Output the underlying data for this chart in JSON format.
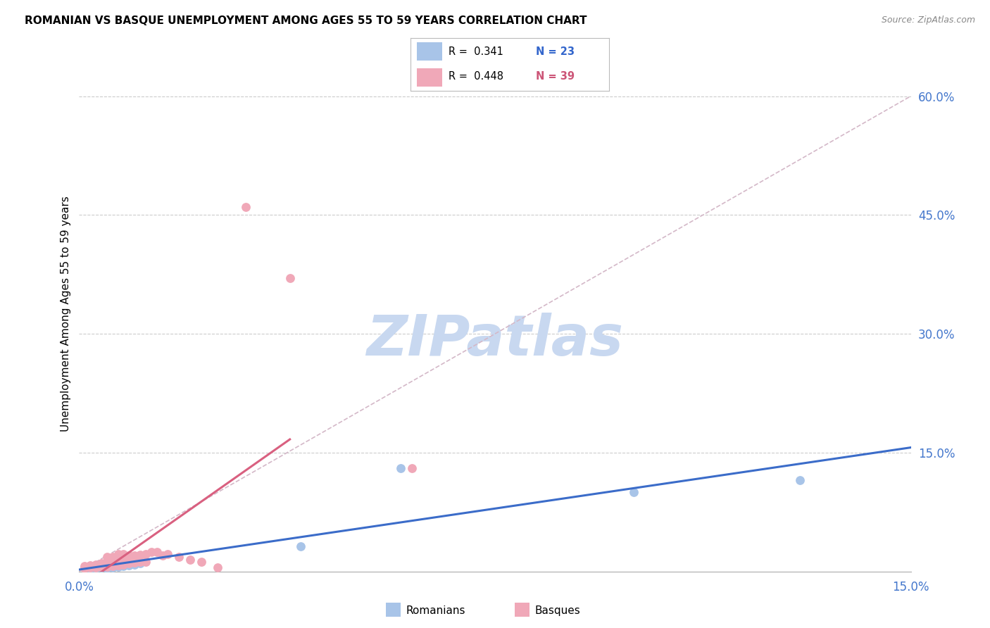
{
  "title": "ROMANIAN VS BASQUE UNEMPLOYMENT AMONG AGES 55 TO 59 YEARS CORRELATION CHART",
  "source": "Source: ZipAtlas.com",
  "ylabel": "Unemployment Among Ages 55 to 59 years",
  "xlim": [
    0.0,
    0.15
  ],
  "ylim": [
    0.0,
    0.65
  ],
  "legend_r_blue": "R =  0.341",
  "legend_n_blue": "N = 23",
  "legend_r_pink": "R =  0.448",
  "legend_n_pink": "N = 39",
  "blue_color": "#a8c4e8",
  "pink_color": "#f0a8b8",
  "blue_line_color": "#3b6cc9",
  "pink_line_color": "#d96080",
  "diag_color": "#d4b8c8",
  "watermark": "ZIPatlas",
  "watermark_color": "#c8d8f0",
  "blue_x": [
    0.001,
    0.002,
    0.002,
    0.003,
    0.003,
    0.004,
    0.004,
    0.005,
    0.005,
    0.006,
    0.006,
    0.006,
    0.007,
    0.007,
    0.008,
    0.009,
    0.01,
    0.01,
    0.011,
    0.04,
    0.058,
    0.1,
    0.13
  ],
  "blue_y": [
    0.005,
    0.004,
    0.006,
    0.004,
    0.006,
    0.005,
    0.007,
    0.004,
    0.006,
    0.005,
    0.007,
    0.009,
    0.006,
    0.008,
    0.007,
    0.008,
    0.009,
    0.011,
    0.01,
    0.032,
    0.13,
    0.1,
    0.115
  ],
  "pink_x": [
    0.001,
    0.001,
    0.002,
    0.002,
    0.003,
    0.003,
    0.004,
    0.004,
    0.005,
    0.005,
    0.005,
    0.006,
    0.006,
    0.006,
    0.007,
    0.007,
    0.007,
    0.008,
    0.008,
    0.008,
    0.009,
    0.009,
    0.01,
    0.01,
    0.011,
    0.011,
    0.012,
    0.012,
    0.013,
    0.014,
    0.015,
    0.016,
    0.018,
    0.02,
    0.022,
    0.025,
    0.03,
    0.038,
    0.06
  ],
  "pink_y": [
    0.004,
    0.007,
    0.005,
    0.008,
    0.005,
    0.009,
    0.006,
    0.01,
    0.006,
    0.01,
    0.018,
    0.007,
    0.012,
    0.018,
    0.008,
    0.013,
    0.022,
    0.009,
    0.015,
    0.022,
    0.01,
    0.02,
    0.011,
    0.02,
    0.012,
    0.021,
    0.012,
    0.022,
    0.025,
    0.025,
    0.02,
    0.022,
    0.018,
    0.015,
    0.012,
    0.005,
    0.46,
    0.37,
    0.13
  ]
}
